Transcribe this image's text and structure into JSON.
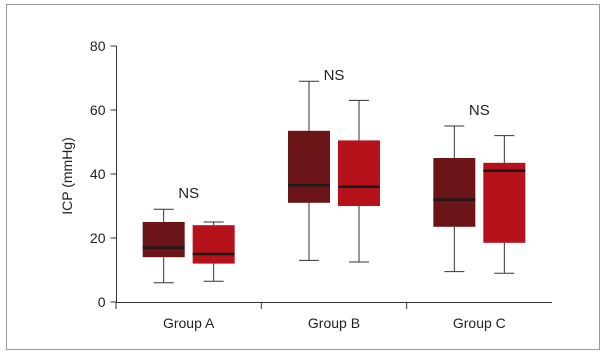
{
  "chart_data": {
    "type": "box",
    "title": "",
    "xlabel": "",
    "ylabel": "ICP (mmHg)",
    "ylim": [
      0,
      80
    ],
    "yticks": [
      0,
      20,
      40,
      60,
      80
    ],
    "categories": [
      "Group A",
      "Group B",
      "Group C"
    ],
    "series": [
      {
        "color": "#6b1518",
        "boxes": [
          {
            "min": 6,
            "q1": 14,
            "median": 17,
            "q3": 25,
            "max": 29
          },
          {
            "min": 13,
            "q1": 31,
            "median": 36.5,
            "q3": 53.5,
            "max": 69
          },
          {
            "min": 9.5,
            "q1": 23.5,
            "median": 32,
            "q3": 45,
            "max": 55
          }
        ]
      },
      {
        "color": "#b5121b",
        "boxes": [
          {
            "min": 6.5,
            "q1": 12,
            "median": 15,
            "q3": 24,
            "max": 25
          },
          {
            "min": 12.5,
            "q1": 30,
            "median": 36,
            "q3": 50.5,
            "max": 63
          },
          {
            "min": 9,
            "q1": 18.5,
            "median": 41,
            "q3": 43.5,
            "max": 52
          }
        ]
      }
    ],
    "annotations": [
      {
        "category": "Group A",
        "text": "NS",
        "y": 34
      },
      {
        "category": "Group B",
        "text": "NS",
        "y": 71
      },
      {
        "category": "Group C",
        "text": "NS",
        "y": 60
      }
    ],
    "grid": false,
    "legend": "none",
    "colors": {
      "frame": "#999999",
      "axis": "#333333",
      "median": "#1a1a1a",
      "text": "#222222"
    }
  }
}
